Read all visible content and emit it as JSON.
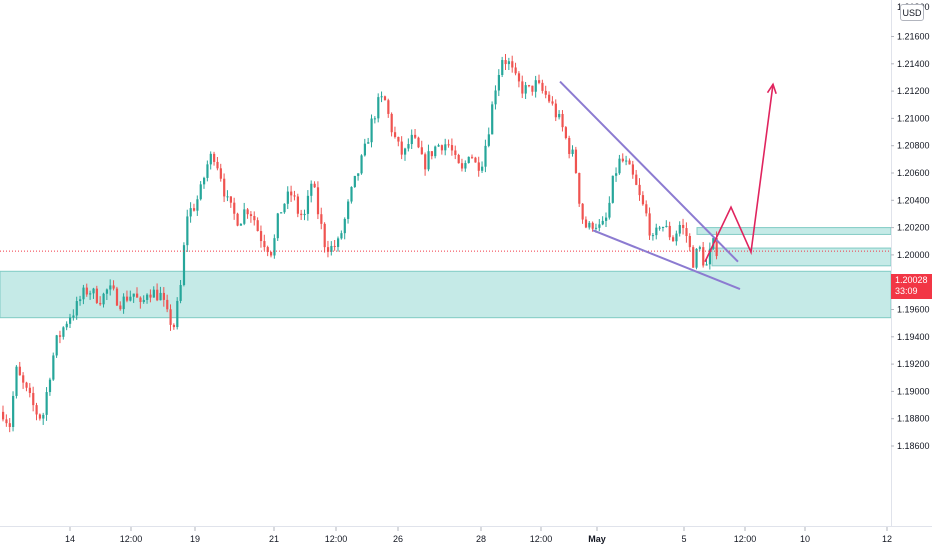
{
  "symbol_currency": "USD",
  "current_price": {
    "price": "1.20028",
    "countdown": "33:09",
    "value": 1.20028
  },
  "colors": {
    "up": "#26a69a",
    "down": "#ef5350",
    "zone_fill": "#b2e3df",
    "zone_border": "#80cbc4",
    "wedge_line": "#8c7bd1",
    "projection": "#e0245e",
    "price_line": "#f23645"
  },
  "chart_data": {
    "type": "candlestick",
    "y_axis": {
      "ticks": [
        1.216,
        1.214,
        1.212,
        1.21,
        1.208,
        1.206,
        1.204,
        1.202,
        1.2,
        1.198,
        1.196,
        1.194,
        1.192,
        1.19,
        1.188,
        1.186
      ],
      "tick_labels": [
        "1.21600",
        "1.21400",
        "1.21200",
        "1.21000",
        "1.20800",
        "1.20600",
        "1.20400",
        "1.20200",
        "1.20000",
        "1.19800",
        "1.19600",
        "1.19400",
        "1.19200",
        "1.19000",
        "1.18800",
        "1.18600"
      ],
      "top_partial_label": "1.21800",
      "range": [
        1.1838,
        1.2183
      ]
    },
    "x_axis": {
      "labels": [
        {
          "text": "14",
          "bold": false
        },
        {
          "text": "12:00",
          "bold": false
        },
        {
          "text": "19",
          "bold": false
        },
        {
          "text": "21",
          "bold": false
        },
        {
          "text": "12:00",
          "bold": false
        },
        {
          "text": "26",
          "bold": false
        },
        {
          "text": "28",
          "bold": false
        },
        {
          "text": "12:00",
          "bold": false
        },
        {
          "text": "May",
          "bold": true
        },
        {
          "text": "5",
          "bold": false
        },
        {
          "text": "12:00",
          "bold": false
        },
        {
          "text": "10",
          "bold": false
        },
        {
          "text": "12",
          "bold": false
        }
      ]
    },
    "price_path": [
      1.1885,
      1.1875,
      1.1915,
      1.1905,
      1.1895,
      1.1885,
      1.188,
      1.191,
      1.1935,
      1.1945,
      1.1955,
      1.196,
      1.197,
      1.1975,
      1.197,
      1.1968,
      1.1975,
      1.197,
      1.1965,
      1.197,
      1.1972,
      1.196,
      1.1975,
      1.1972,
      1.197,
      1.1955,
      1.1948,
      1.1975,
      1.203,
      1.2035,
      1.2045,
      1.2065,
      1.2075,
      1.2062,
      1.204,
      1.203,
      1.2025,
      1.2035,
      1.203,
      1.2015,
      1.2008,
      1.2002,
      1.203,
      1.204,
      1.2045,
      1.203,
      1.2028,
      1.2055,
      1.203,
      1.2008,
      1.2005,
      1.2008,
      1.2025,
      1.2045,
      1.206,
      1.2075,
      1.2095,
      1.211,
      1.2115,
      1.2095,
      1.208,
      1.2072,
      1.2085,
      1.208,
      1.2065,
      1.2074,
      1.208,
      1.2082,
      1.208,
      1.2066,
      1.206,
      1.2078,
      1.2065,
      1.207,
      1.2095,
      1.2125,
      1.2145,
      1.214,
      1.2128,
      1.2122,
      1.212,
      1.2125,
      1.212,
      1.2115,
      1.2105,
      1.2095,
      1.208,
      1.207,
      1.203,
      1.2018,
      1.2025,
      1.2018,
      1.2028,
      1.2058,
      1.207,
      1.2065,
      1.2055,
      1.204,
      1.2028,
      1.2008,
      1.2024,
      1.2018,
      1.2012,
      1.2022,
      1.2015,
      1.1995,
      1.2005,
      1.199,
      1.2008,
      1.2002
    ],
    "zones": [
      {
        "name": "support",
        "from": 1.1954,
        "to": 1.1988
      },
      {
        "name": "resistance",
        "from": 1.2015,
        "to": 1.202
      },
      {
        "name": "breakout-box",
        "from": 1.1992,
        "to": 1.2005
      }
    ],
    "wedge": {
      "upper": [
        [
          1.2127,
          560
        ],
        [
          1.1995,
          738
        ]
      ],
      "lower": [
        [
          1.2018,
          593
        ],
        [
          1.1975,
          740
        ]
      ]
    },
    "projection": [
      [
        1.1995,
        705
      ],
      [
        1.2035,
        731
      ],
      [
        1.2002,
        751
      ],
      [
        1.2125,
        773
      ]
    ],
    "grid": false
  }
}
